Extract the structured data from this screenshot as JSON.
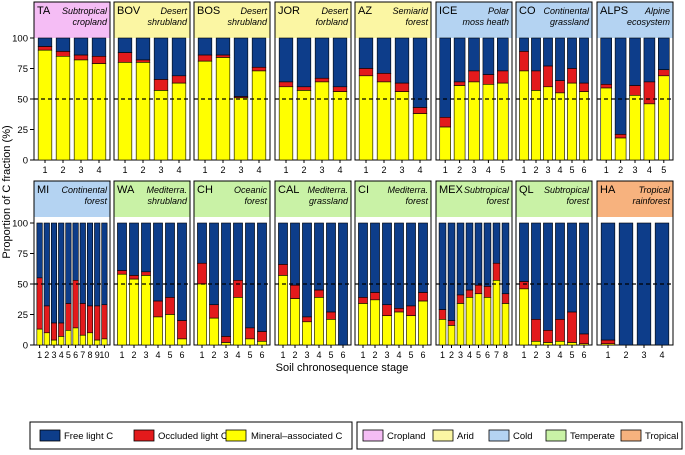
{
  "chart_data": {
    "type": "bar",
    "ylabel": "Proportion of C fraction (%)",
    "xlabel": "Soil chronosequence stage",
    "ylim": [
      0,
      100
    ],
    "yticks": [
      0,
      25,
      50,
      75,
      100
    ],
    "reference_line": 50,
    "colors": {
      "free": "#0d3d8a",
      "occluded": "#e31a1c",
      "mineral": "#ffff00",
      "Cropland": "#f5bdf5",
      "Arid": "#fbf6a3",
      "Cold": "#b4d3f2",
      "Temperate": "#c9f2a6",
      "Tropical": "#f7b27e"
    },
    "fraction_legend": [
      {
        "key": "free",
        "label": "Free light C"
      },
      {
        "key": "occluded",
        "label": "Occluded light C"
      },
      {
        "key": "mineral",
        "label": "Mineral–associated C"
      }
    ],
    "biome_legend": [
      "Cropland",
      "Arid",
      "Cold",
      "Temperate",
      "Tropical"
    ],
    "panels": [
      {
        "code": "TA",
        "name": "Subtropical cropland",
        "name_lines": [
          "Subtropical",
          "cropland"
        ],
        "biome": "Cropland",
        "stages": [
          "1",
          "2",
          "3",
          "4"
        ],
        "mineral": [
          90,
          85,
          82,
          79
        ],
        "occluded": [
          3,
          4,
          4,
          6
        ]
      },
      {
        "code": "BOV",
        "name": "Desert shrubland",
        "name_lines": [
          "Desert",
          "shrubland"
        ],
        "biome": "Arid",
        "stages": [
          "1",
          "2",
          "3",
          "4"
        ],
        "mineral": [
          80,
          80,
          57,
          63
        ],
        "occluded": [
          8,
          2,
          9,
          6
        ]
      },
      {
        "code": "BOS",
        "name": "Desert shrubland",
        "name_lines": [
          "Desert",
          "shrubland"
        ],
        "biome": "Arid",
        "stages": [
          "1",
          "2",
          "3",
          "4"
        ],
        "mineral": [
          81,
          84,
          51,
          73
        ],
        "occluded": [
          5,
          2,
          1,
          3
        ]
      },
      {
        "code": "JOR",
        "name": "Desert forbland",
        "name_lines": [
          "Desert",
          "forbland"
        ],
        "biome": "Arid",
        "stages": [
          "1",
          "2",
          "3",
          "4"
        ],
        "mineral": [
          60,
          57,
          64,
          56
        ],
        "occluded": [
          4,
          3,
          3,
          4
        ]
      },
      {
        "code": "AZ",
        "name": "Semiarid forest",
        "name_lines": [
          "Semiarid",
          "forest"
        ],
        "biome": "Arid",
        "stages": [
          "1",
          "2",
          "3",
          "4"
        ],
        "mineral": [
          69,
          64,
          56,
          38
        ],
        "occluded": [
          6,
          7,
          7,
          5
        ]
      },
      {
        "code": "ICE",
        "name": "Polar moss heath",
        "name_lines": [
          "Polar",
          "moss heath"
        ],
        "biome": "Cold",
        "stages": [
          "1",
          "2",
          "3",
          "4",
          "5"
        ],
        "mineral": [
          27,
          61,
          64,
          62,
          63
        ],
        "occluded": [
          8,
          3,
          9,
          8,
          10
        ]
      },
      {
        "code": "CO",
        "name": "Continental grassland",
        "name_lines": [
          "Continental",
          "grassland"
        ],
        "biome": "Cold",
        "stages": [
          "1",
          "2",
          "3",
          "4",
          "5",
          "6"
        ],
        "mineral": [
          73,
          57,
          60,
          55,
          63,
          56
        ],
        "occluded": [
          16,
          16,
          17,
          10,
          12,
          7
        ]
      },
      {
        "code": "ALPS",
        "name": "Alpine ecosystem",
        "name_lines": [
          "Alpine",
          "ecosystem"
        ],
        "biome": "Cold",
        "stages": [
          "1",
          "2",
          "3",
          "4",
          "5"
        ],
        "mineral": [
          59,
          18,
          53,
          46,
          69
        ],
        "occluded": [
          3,
          3,
          8,
          18,
          5
        ]
      },
      {
        "code": "MI",
        "name": "Continental forest",
        "name_lines": [
          "Continental",
          "forest"
        ],
        "biome": "Cold",
        "stages": [
          "1",
          "2",
          "3",
          "4",
          "5",
          "6",
          "7",
          "8",
          "9",
          "10"
        ],
        "mineral": [
          13,
          10,
          4,
          7,
          12,
          14,
          8,
          10,
          4,
          5
        ],
        "occluded": [
          42,
          22,
          14,
          11,
          22,
          39,
          26,
          22,
          28,
          28
        ]
      },
      {
        "code": "WA",
        "name": "Mediterranean shrubland",
        "name_lines": [
          "Mediterra.",
          "shrubland"
        ],
        "biome": "Temperate",
        "stages": [
          "1",
          "2",
          "3",
          "4",
          "5",
          "6"
        ],
        "mineral": [
          58,
          54,
          57,
          23,
          25,
          5
        ],
        "occluded": [
          3,
          3,
          3,
          13,
          14,
          15
        ]
      },
      {
        "code": "CH",
        "name": "Oceanic forest",
        "name_lines": [
          "Oceanic",
          "forest"
        ],
        "biome": "Temperate",
        "stages": [
          "1",
          "2",
          "3",
          "4",
          "5",
          "6"
        ],
        "mineral": [
          50,
          22,
          2,
          39,
          5,
          3
        ],
        "occluded": [
          17,
          11,
          5,
          14,
          9,
          8
        ]
      },
      {
        "code": "CAL",
        "name": "Mediterranean grassland",
        "name_lines": [
          "Mediterra.",
          "grassland"
        ],
        "biome": "Temperate",
        "stages": [
          "1",
          "2",
          "3",
          "4",
          "5",
          "6"
        ],
        "mineral": [
          57,
          38,
          19,
          39,
          21,
          0
        ],
        "occluded": [
          9,
          11,
          4,
          6,
          6,
          0
        ]
      },
      {
        "code": "CI",
        "name": "Mediterranean forest",
        "name_lines": [
          "Mediterra.",
          "forest"
        ],
        "biome": "Temperate",
        "stages": [
          "1",
          "2",
          "3",
          "4",
          "5",
          "6"
        ],
        "mineral": [
          34,
          37,
          24,
          27,
          24,
          36
        ],
        "occluded": [
          5,
          6,
          9,
          3,
          8,
          7
        ]
      },
      {
        "code": "MEX",
        "name": "Subtropical forest",
        "name_lines": [
          "Subtropical",
          "forest"
        ],
        "biome": "Temperate",
        "stages": [
          "1",
          "2",
          "3",
          "4",
          "5",
          "6",
          "7",
          "8"
        ],
        "mineral": [
          21,
          16,
          34,
          39,
          42,
          39,
          53,
          34
        ],
        "occluded": [
          8,
          4,
          7,
          6,
          7,
          9,
          14,
          8
        ]
      },
      {
        "code": "QL",
        "name": "Subtropical forest",
        "name_lines": [
          "Subtropical",
          "forest"
        ],
        "biome": "Temperate",
        "stages": [
          "1",
          "2",
          "3",
          "4",
          "5",
          "6"
        ],
        "mineral": [
          46,
          3,
          2,
          3,
          2,
          1
        ],
        "occluded": [
          6,
          18,
          10,
          18,
          25,
          8
        ]
      },
      {
        "code": "HA",
        "name": "Tropical rainforest",
        "name_lines": [
          "Tropical",
          "rainforest"
        ],
        "biome": "Tropical",
        "stages": [
          "1",
          "2",
          "3",
          "4"
        ],
        "mineral": [
          1,
          0,
          0,
          0
        ],
        "occluded": [
          3,
          0,
          0,
          0
        ]
      }
    ]
  }
}
